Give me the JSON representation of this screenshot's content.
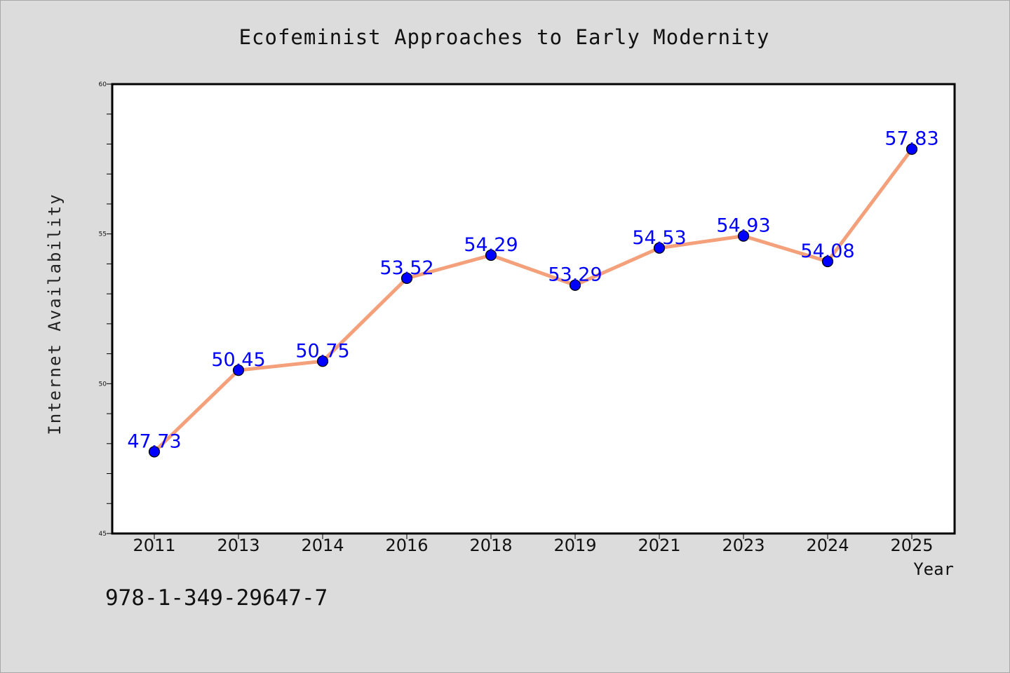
{
  "chart_data": {
    "type": "line",
    "title": "Ecofeminist Approaches to Early Modernity",
    "xlabel": "Year",
    "ylabel": "Internet Availability",
    "categories": [
      "2011",
      "2013",
      "2014",
      "2016",
      "2018",
      "2019",
      "2021",
      "2023",
      "2024",
      "2025"
    ],
    "series": [
      {
        "values": [
          47.73,
          50.45,
          50.75,
          53.52,
          54.29,
          53.29,
          54.53,
          54.93,
          54.08,
          57.83
        ]
      }
    ],
    "data_labels": [
      "47.73",
      "50.45",
      "50.75",
      "53.52",
      "54.29",
      "53.29",
      "54.53",
      "54.93",
      "54.08",
      "57.83"
    ],
    "ylim": [
      45,
      60
    ],
    "yticks": [
      "45",
      "50",
      "55",
      "60"
    ],
    "grid": false,
    "legend": "none",
    "colors": {
      "line": "#f4a07a",
      "marker": "#0000ff",
      "data_label": "#0000ff",
      "background": "#dcdcdc",
      "plot_background": "#ffffff"
    }
  },
  "footer": {
    "identifier": "978-1-349-29647-7"
  }
}
